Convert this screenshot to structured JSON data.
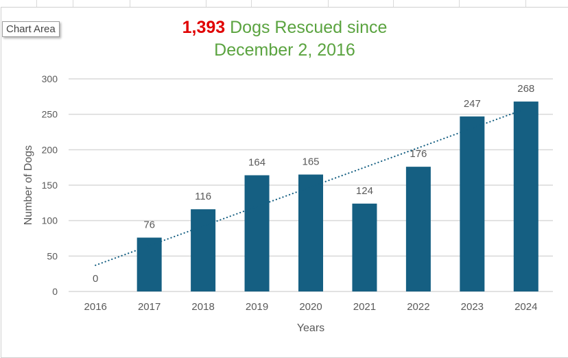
{
  "tooltip": "Chart Area",
  "chart_data": {
    "type": "bar",
    "title": {
      "highlight": "1,393",
      "line1": "Dogs Rescued since",
      "line2": "December 2, 2016"
    },
    "xlabel": "Years",
    "ylabel": "Number of Dogs",
    "categories": [
      "2016",
      "2017",
      "2018",
      "2019",
      "2020",
      "2021",
      "2022",
      "2023",
      "2024"
    ],
    "values": [
      0,
      76,
      116,
      164,
      165,
      124,
      176,
      247,
      268
    ],
    "data_labels": [
      "0",
      "76",
      "116",
      "164",
      "165",
      "124",
      "176",
      "247",
      "268"
    ],
    "ylim": [
      0,
      300
    ],
    "yticks": [
      0,
      50,
      100,
      150,
      200,
      250,
      300
    ],
    "grid": true,
    "legend": "none",
    "trendline": {
      "type": "linear",
      "style": "dotted",
      "start": 37,
      "end": 258
    },
    "colors": {
      "bar": "#155f82",
      "trend": "#155f82",
      "title_number": "#e00000",
      "title_text": "#5aa33f"
    }
  }
}
